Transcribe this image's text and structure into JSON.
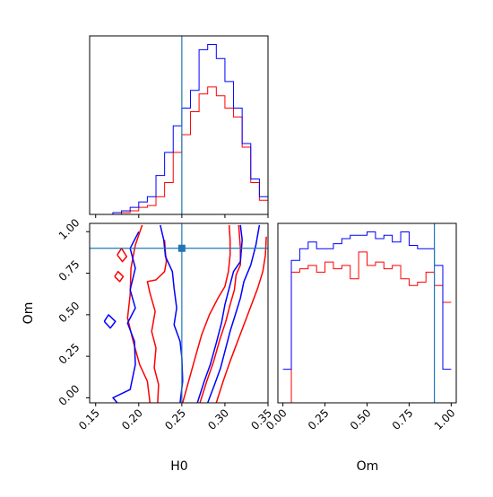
{
  "colors": {
    "series_a": "#ff0000",
    "series_b": "#0000ff",
    "truth": "#1f77b4",
    "frame": "#000000"
  },
  "truth_values": {
    "H0": 0.25,
    "Om": 0.9
  },
  "chart_data": [
    {
      "type": "histogram",
      "panel": "H0 marginal",
      "xlabel": "",
      "ylabel": "",
      "xlim": [
        0.143,
        0.35
      ],
      "x_ticks": [
        0.15,
        0.2,
        0.25,
        0.3,
        0.35
      ],
      "grid": false,
      "bin_edges": [
        0.15,
        0.16,
        0.17,
        0.18,
        0.19,
        0.2,
        0.21,
        0.22,
        0.23,
        0.24,
        0.25,
        0.26,
        0.27,
        0.28,
        0.29,
        0.3,
        0.31,
        0.32,
        0.33,
        0.34,
        0.35
      ],
      "series": [
        {
          "color": "red",
          "values": [
            0.0,
            0.0,
            0.0,
            0.01,
            0.02,
            0.04,
            0.05,
            0.1,
            0.18,
            0.35,
            0.45,
            0.58,
            0.68,
            0.72,
            0.67,
            0.6,
            0.55,
            0.38,
            0.18,
            0.08
          ]
        },
        {
          "color": "blue",
          "values": [
            0.0,
            0.0,
            0.01,
            0.02,
            0.04,
            0.07,
            0.1,
            0.22,
            0.35,
            0.5,
            0.6,
            0.7,
            0.93,
            0.96,
            0.88,
            0.75,
            0.6,
            0.4,
            0.2,
            0.1
          ]
        }
      ]
    },
    {
      "type": "histogram",
      "panel": "Om marginal",
      "xlabel": "Om",
      "ylabel": "",
      "xlim": [
        -0.03,
        1.03
      ],
      "x_ticks": [
        0.0,
        0.25,
        0.5,
        0.75,
        1.0
      ],
      "x_tick_labels": [
        "0.00",
        "0.25",
        "0.50",
        "0.75",
        "1.00"
      ],
      "grid": false,
      "bin_edges": [
        0.0,
        0.05,
        0.1,
        0.15,
        0.2,
        0.25,
        0.3,
        0.35,
        0.4,
        0.45,
        0.5,
        0.55,
        0.6,
        0.65,
        0.7,
        0.75,
        0.8,
        0.85,
        0.9,
        0.95,
        1.0
      ],
      "series": [
        {
          "color": "red",
          "values": [
            0.0,
            0.78,
            0.8,
            0.82,
            0.78,
            0.84,
            0.8,
            0.82,
            0.74,
            0.9,
            0.82,
            0.84,
            0.8,
            0.82,
            0.74,
            0.7,
            0.72,
            0.78,
            0.7,
            0.6
          ]
        },
        {
          "color": "blue",
          "values": [
            0.2,
            0.85,
            0.92,
            0.96,
            0.92,
            0.92,
            0.95,
            0.98,
            1.0,
            1.0,
            1.02,
            0.98,
            1.0,
            0.96,
            1.02,
            0.94,
            0.92,
            0.92,
            0.82,
            0.2
          ]
        }
      ]
    },
    {
      "type": "contour",
      "panel": "H0 vs Om joint",
      "xlabel": "H0",
      "ylabel": "Om",
      "xlim": [
        0.143,
        0.35
      ],
      "ylim": [
        -0.03,
        1.05
      ],
      "x_ticks": [
        0.15,
        0.2,
        0.25,
        0.3,
        0.35
      ],
      "x_tick_labels": [
        "0.15",
        "0.20",
        "0.25",
        "0.30",
        "0.35"
      ],
      "y_ticks": [
        0.0,
        0.25,
        0.5,
        0.75,
        1.0
      ],
      "y_tick_labels": [
        "0.00",
        "0.25",
        "0.50",
        "0.75",
        "1.00"
      ],
      "grid": false,
      "series": [
        {
          "color": "red",
          "contours": [
            [
              [
                0.204,
                1.04
              ],
              [
                0.196,
                0.92
              ],
              [
                0.191,
                0.78
              ],
              [
                0.19,
                0.62
              ],
              [
                0.187,
                0.48
              ],
              [
                0.193,
                0.35
              ],
              [
                0.201,
                0.2
              ],
              [
                0.21,
                0.1
              ],
              [
                0.213,
                -0.03
              ]
            ],
            [
              [
                0.23,
                0.95
              ],
              [
                0.231,
                0.87
              ],
              [
                0.232,
                0.82
              ],
              [
                0.23,
                0.76
              ],
              [
                0.22,
                0.71
              ],
              [
                0.21,
                0.7
              ],
              [
                0.213,
                0.63
              ],
              [
                0.219,
                0.52
              ],
              [
                0.215,
                0.4
              ],
              [
                0.22,
                0.3
              ],
              [
                0.218,
                0.18
              ],
              [
                0.223,
                0.08
              ],
              [
                0.222,
                -0.03
              ]
            ],
            [
              [
                0.251,
                -0.03
              ],
              [
                0.259,
                0.12
              ],
              [
                0.266,
                0.25
              ],
              [
                0.273,
                0.38
              ],
              [
                0.282,
                0.5
              ],
              [
                0.292,
                0.6
              ],
              [
                0.3,
                0.67
              ],
              [
                0.304,
                0.76
              ],
              [
                0.306,
                0.86
              ],
              [
                0.306,
                0.95
              ],
              [
                0.305,
                1.04
              ]
            ],
            [
              [
                0.271,
                -0.03
              ],
              [
                0.279,
                0.1
              ],
              [
                0.287,
                0.22
              ],
              [
                0.294,
                0.35
              ],
              [
                0.301,
                0.46
              ],
              [
                0.306,
                0.56
              ],
              [
                0.311,
                0.65
              ],
              [
                0.313,
                0.74
              ],
              [
                0.318,
                0.8
              ],
              [
                0.318,
                0.9
              ],
              [
                0.316,
                1.04
              ]
            ],
            [
              [
                0.29,
                -0.03
              ],
              [
                0.298,
                0.1
              ],
              [
                0.306,
                0.22
              ],
              [
                0.314,
                0.33
              ],
              [
                0.322,
                0.44
              ],
              [
                0.33,
                0.55
              ],
              [
                0.338,
                0.66
              ],
              [
                0.344,
                0.76
              ],
              [
                0.347,
                0.86
              ],
              [
                0.348,
                0.97
              ]
            ],
            [
              [
                0.175,
                0.86
              ],
              [
                0.181,
                0.82
              ],
              [
                0.186,
                0.85
              ],
              [
                0.18,
                0.9
              ],
              [
                0.175,
                0.86
              ]
            ],
            [
              [
                0.172,
                0.73
              ],
              [
                0.178,
                0.7
              ],
              [
                0.182,
                0.73
              ],
              [
                0.176,
                0.76
              ],
              [
                0.172,
                0.73
              ]
            ]
          ]
        },
        {
          "color": "blue",
          "contours": [
            [
              [
                0.2,
                1.0
              ],
              [
                0.19,
                0.9
              ],
              [
                0.196,
                0.78
              ],
              [
                0.19,
                0.65
              ],
              [
                0.196,
                0.54
              ],
              [
                0.187,
                0.45
              ],
              [
                0.195,
                0.34
              ],
              [
                0.196,
                0.2
              ],
              [
                0.19,
                0.05
              ],
              [
                0.17,
                0.0
              ],
              [
                0.175,
                -0.03
              ]
            ],
            [
              [
                0.225,
                1.04
              ],
              [
                0.229,
                0.95
              ],
              [
                0.231,
                0.85
              ],
              [
                0.239,
                0.76
              ],
              [
                0.241,
                0.66
              ],
              [
                0.244,
                0.54
              ],
              [
                0.241,
                0.44
              ],
              [
                0.248,
                0.34
              ],
              [
                0.25,
                0.24
              ],
              [
                0.251,
                0.1
              ],
              [
                0.248,
                -0.03
              ]
            ],
            [
              [
                0.268,
                -0.03
              ],
              [
                0.276,
                0.1
              ],
              [
                0.283,
                0.2
              ],
              [
                0.29,
                0.33
              ],
              [
                0.296,
                0.45
              ],
              [
                0.3,
                0.56
              ],
              [
                0.305,
                0.66
              ],
              [
                0.31,
                0.76
              ],
              [
                0.318,
                0.82
              ],
              [
                0.32,
                0.95
              ],
              [
                0.318,
                1.04
              ]
            ],
            [
              [
                0.28,
                -0.03
              ],
              [
                0.288,
                0.08
              ],
              [
                0.295,
                0.18
              ],
              [
                0.301,
                0.3
              ],
              [
                0.306,
                0.4
              ],
              [
                0.312,
                0.5
              ],
              [
                0.318,
                0.6
              ],
              [
                0.322,
                0.7
              ],
              [
                0.33,
                0.8
              ],
              [
                0.336,
                0.92
              ],
              [
                0.34,
                1.04
              ]
            ],
            [
              [
                0.16,
                0.46
              ],
              [
                0.167,
                0.42
              ],
              [
                0.173,
                0.46
              ],
              [
                0.165,
                0.5
              ],
              [
                0.16,
                0.46
              ]
            ]
          ]
        }
      ]
    }
  ]
}
